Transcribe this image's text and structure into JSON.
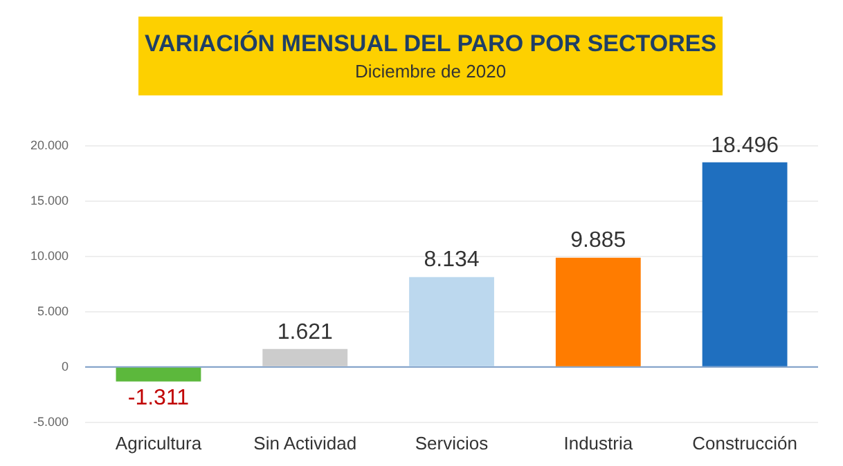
{
  "chart_data": {
    "type": "bar",
    "title": "VARIACIÓN MENSUAL DEL PARO POR SECTORES",
    "subtitle": "Diciembre de 2020",
    "categories": [
      "Agricultura",
      "Sin Actividad",
      "Servicios",
      "Industria",
      "Construcción"
    ],
    "values": [
      -1311,
      1621,
      8134,
      9885,
      18496
    ],
    "colors": [
      "#5cb83c",
      "#cccccc",
      "#bcd8ee",
      "#ff7c00",
      "#1f6fbf"
    ],
    "value_labels": [
      "-1.311",
      "1.621",
      "8.134",
      "9.885",
      "18.496"
    ],
    "ylim": [
      -5000,
      20000
    ],
    "yticks": [
      {
        "value": -5000,
        "label": "-5.000"
      },
      {
        "value": 0,
        "label": "0"
      },
      {
        "value": 5000,
        "label": "5.000"
      },
      {
        "value": 10000,
        "label": "10.000"
      },
      {
        "value": 15000,
        "label": "15.000"
      },
      {
        "value": 20000,
        "label": "20.000"
      }
    ],
    "ref_lines": [
      {
        "axis": "y",
        "value": 0,
        "color": "#7a9cc6"
      }
    ],
    "grid": "y",
    "legend": false
  }
}
